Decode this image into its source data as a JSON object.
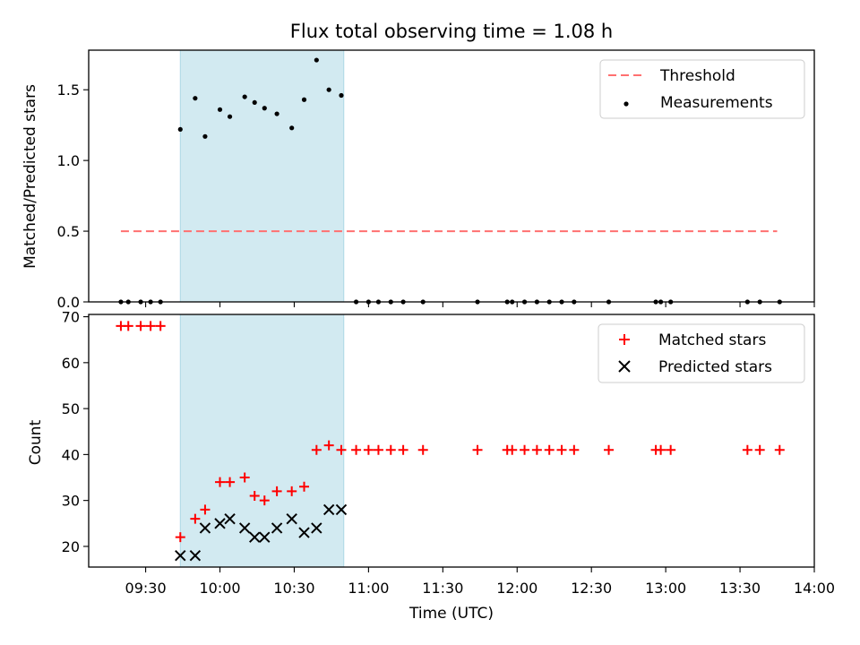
{
  "chart_data": [
    {
      "type": "scatter",
      "title": "Flux total observing time = 1.08 h",
      "xlabel": "",
      "ylabel": "Matched/Predicted stars",
      "xlim": [
        "09:07",
        "14:00"
      ],
      "ylim": [
        0,
        1.78
      ],
      "yticks": [
        0.0,
        0.5,
        1.0,
        1.5
      ],
      "ytick_labels": [
        "0.0",
        "0.5",
        "1.0",
        "1.5"
      ],
      "legend_position": "top-right",
      "highlight_span": {
        "x": [
          "09:44",
          "10:50"
        ],
        "color": "#add8e6"
      },
      "threshold": {
        "name": "Threshold",
        "y": 0.5,
        "x": [
          "09:20",
          "13:45"
        ],
        "color": "#ff7070",
        "style": "dashed"
      },
      "series": [
        {
          "name": "Measurements",
          "color": "#000000",
          "marker": "dot",
          "points": [
            [
              "09:20",
              0
            ],
            [
              "09:23",
              0
            ],
            [
              "09:28",
              0
            ],
            [
              "09:32",
              0
            ],
            [
              "09:36",
              0
            ],
            [
              "09:44",
              1.22
            ],
            [
              "09:50",
              1.44
            ],
            [
              "09:54",
              1.17
            ],
            [
              "10:00",
              1.36
            ],
            [
              "10:04",
              1.31
            ],
            [
              "10:10",
              1.45
            ],
            [
              "10:14",
              1.41
            ],
            [
              "10:18",
              1.37
            ],
            [
              "10:23",
              1.33
            ],
            [
              "10:29",
              1.23
            ],
            [
              "10:34",
              1.43
            ],
            [
              "10:39",
              1.71
            ],
            [
              "10:44",
              1.5
            ],
            [
              "10:49",
              1.46
            ],
            [
              "10:55",
              0
            ],
            [
              "11:00",
              0
            ],
            [
              "11:04",
              0
            ],
            [
              "11:09",
              0
            ],
            [
              "11:14",
              0
            ],
            [
              "11:22",
              0
            ],
            [
              "11:44",
              0
            ],
            [
              "11:56",
              0
            ],
            [
              "11:58",
              0
            ],
            [
              "12:03",
              0
            ],
            [
              "12:08",
              0
            ],
            [
              "12:13",
              0
            ],
            [
              "12:18",
              0
            ],
            [
              "12:23",
              0
            ],
            [
              "12:37",
              0
            ],
            [
              "12:56",
              0
            ],
            [
              "12:58",
              0
            ],
            [
              "13:02",
              0
            ],
            [
              "13:33",
              0
            ],
            [
              "13:38",
              0
            ],
            [
              "13:46",
              0
            ]
          ]
        }
      ]
    },
    {
      "type": "scatter",
      "title": "",
      "xlabel": "Time (UTC)",
      "ylabel": "Count",
      "xlim": [
        "09:07",
        "14:00"
      ],
      "ylim": [
        15.5,
        70.5
      ],
      "xticks": [
        "09:30",
        "10:00",
        "10:30",
        "11:00",
        "11:30",
        "12:00",
        "12:30",
        "13:00",
        "13:30",
        "14:00"
      ],
      "yticks": [
        20,
        30,
        40,
        50,
        60,
        70
      ],
      "ytick_labels": [
        "20",
        "30",
        "40",
        "50",
        "60",
        "70"
      ],
      "legend_position": "top-right",
      "highlight_span": {
        "x": [
          "09:44",
          "10:50"
        ],
        "color": "#add8e6"
      },
      "series": [
        {
          "name": "Matched stars",
          "color": "#ff0000",
          "marker": "plus",
          "points": [
            [
              "09:20",
              68
            ],
            [
              "09:23",
              68
            ],
            [
              "09:28",
              68
            ],
            [
              "09:32",
              68
            ],
            [
              "09:36",
              68
            ],
            [
              "09:44",
              22
            ],
            [
              "09:50",
              26
            ],
            [
              "09:54",
              28
            ],
            [
              "10:00",
              34
            ],
            [
              "10:04",
              34
            ],
            [
              "10:10",
              35
            ],
            [
              "10:14",
              31
            ],
            [
              "10:18",
              30
            ],
            [
              "10:23",
              32
            ],
            [
              "10:29",
              32
            ],
            [
              "10:34",
              33
            ],
            [
              "10:39",
              41
            ],
            [
              "10:44",
              42
            ],
            [
              "10:49",
              41
            ],
            [
              "10:55",
              41
            ],
            [
              "11:00",
              41
            ],
            [
              "11:04",
              41
            ],
            [
              "11:09",
              41
            ],
            [
              "11:14",
              41
            ],
            [
              "11:22",
              41
            ],
            [
              "11:44",
              41
            ],
            [
              "11:56",
              41
            ],
            [
              "11:58",
              41
            ],
            [
              "12:03",
              41
            ],
            [
              "12:08",
              41
            ],
            [
              "12:13",
              41
            ],
            [
              "12:18",
              41
            ],
            [
              "12:23",
              41
            ],
            [
              "12:37",
              41
            ],
            [
              "12:56",
              41
            ],
            [
              "12:58",
              41
            ],
            [
              "13:02",
              41
            ],
            [
              "13:33",
              41
            ],
            [
              "13:38",
              41
            ],
            [
              "13:46",
              41
            ]
          ]
        },
        {
          "name": "Predicted stars",
          "color": "#000000",
          "marker": "x",
          "points": [
            [
              "09:44",
              18
            ],
            [
              "09:50",
              18
            ],
            [
              "09:54",
              24
            ],
            [
              "10:00",
              25
            ],
            [
              "10:04",
              26
            ],
            [
              "10:10",
              24
            ],
            [
              "10:14",
              22
            ],
            [
              "10:18",
              22
            ],
            [
              "10:23",
              24
            ],
            [
              "10:29",
              26
            ],
            [
              "10:34",
              23
            ],
            [
              "10:39",
              24
            ],
            [
              "10:44",
              28
            ],
            [
              "10:49",
              28
            ]
          ]
        }
      ]
    }
  ]
}
